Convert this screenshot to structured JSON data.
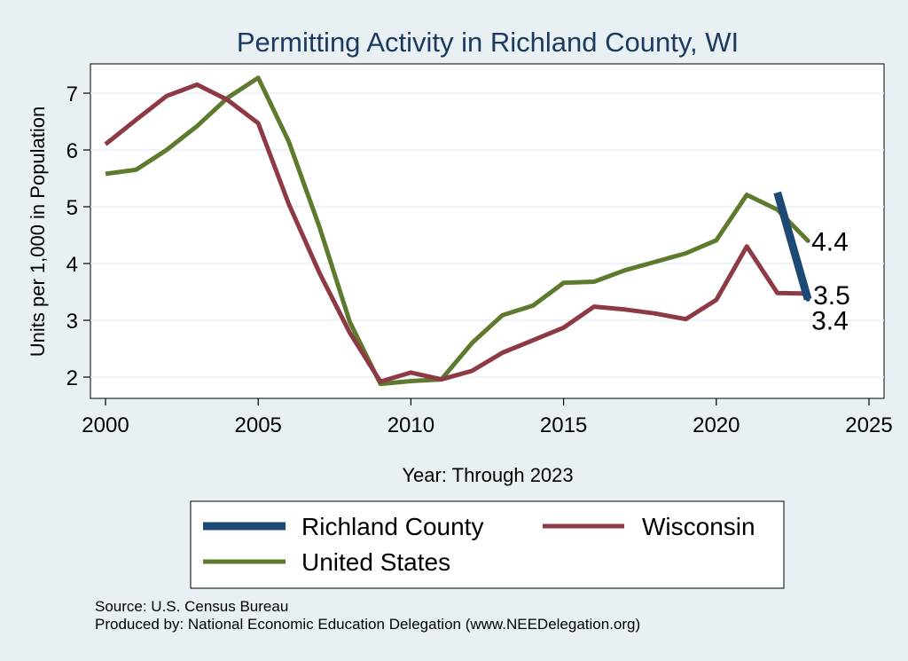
{
  "chart_data": {
    "type": "line",
    "title": "Permitting Activity in Richland County, WI",
    "xlabel": "Year: Through 2023",
    "ylabel": "Units per 1,000 in Population",
    "xlim": [
      2000,
      2025
    ],
    "ylim": [
      1.7,
      7.5
    ],
    "xticks": [
      "2000",
      "2005",
      "2010",
      "2015",
      "2020",
      "2025"
    ],
    "yticks": [
      "2",
      "3",
      "4",
      "5",
      "6",
      "7"
    ],
    "grid": true,
    "series": [
      {
        "name": "Richland County",
        "color": "#1c4a74",
        "x": [
          2022,
          2023
        ],
        "values": [
          5.25,
          3.37
        ],
        "end_label": "3.4"
      },
      {
        "name": "Wisconsin",
        "color": "#8e3a44",
        "x": [
          2000,
          2001,
          2002,
          2003,
          2004,
          2005,
          2006,
          2007,
          2008,
          2009,
          2010,
          2011,
          2012,
          2013,
          2014,
          2015,
          2016,
          2017,
          2018,
          2019,
          2020,
          2021,
          2022,
          2023
        ],
        "values": [
          6.1,
          6.53,
          6.95,
          7.15,
          6.88,
          6.47,
          5.05,
          3.84,
          2.78,
          1.92,
          2.08,
          1.96,
          2.11,
          2.43,
          2.65,
          2.87,
          3.24,
          3.19,
          3.12,
          3.02,
          3.36,
          4.3,
          3.48,
          3.47
        ],
        "end_label": "3.5"
      },
      {
        "name": "United States",
        "color": "#5e7a2e",
        "x": [
          2000,
          2001,
          2002,
          2003,
          2004,
          2005,
          2006,
          2007,
          2008,
          2009,
          2010,
          2011,
          2012,
          2013,
          2014,
          2015,
          2016,
          2017,
          2018,
          2019,
          2020,
          2021,
          2022,
          2023
        ],
        "values": [
          5.58,
          5.65,
          6.0,
          6.42,
          6.92,
          7.27,
          6.15,
          4.65,
          2.97,
          1.88,
          1.93,
          1.96,
          2.6,
          3.09,
          3.26,
          3.66,
          3.68,
          3.88,
          4.03,
          4.18,
          4.41,
          5.21,
          4.95,
          4.4
        ],
        "end_label": "4.4"
      }
    ],
    "legend": {
      "position": "bottom",
      "entries": [
        "Richland County",
        "Wisconsin",
        "United States"
      ]
    },
    "notes": [
      "Source: U.S. Census Bureau",
      "Produced by: National Economic Education Delegation (www.NEEDelegation.org)"
    ]
  }
}
